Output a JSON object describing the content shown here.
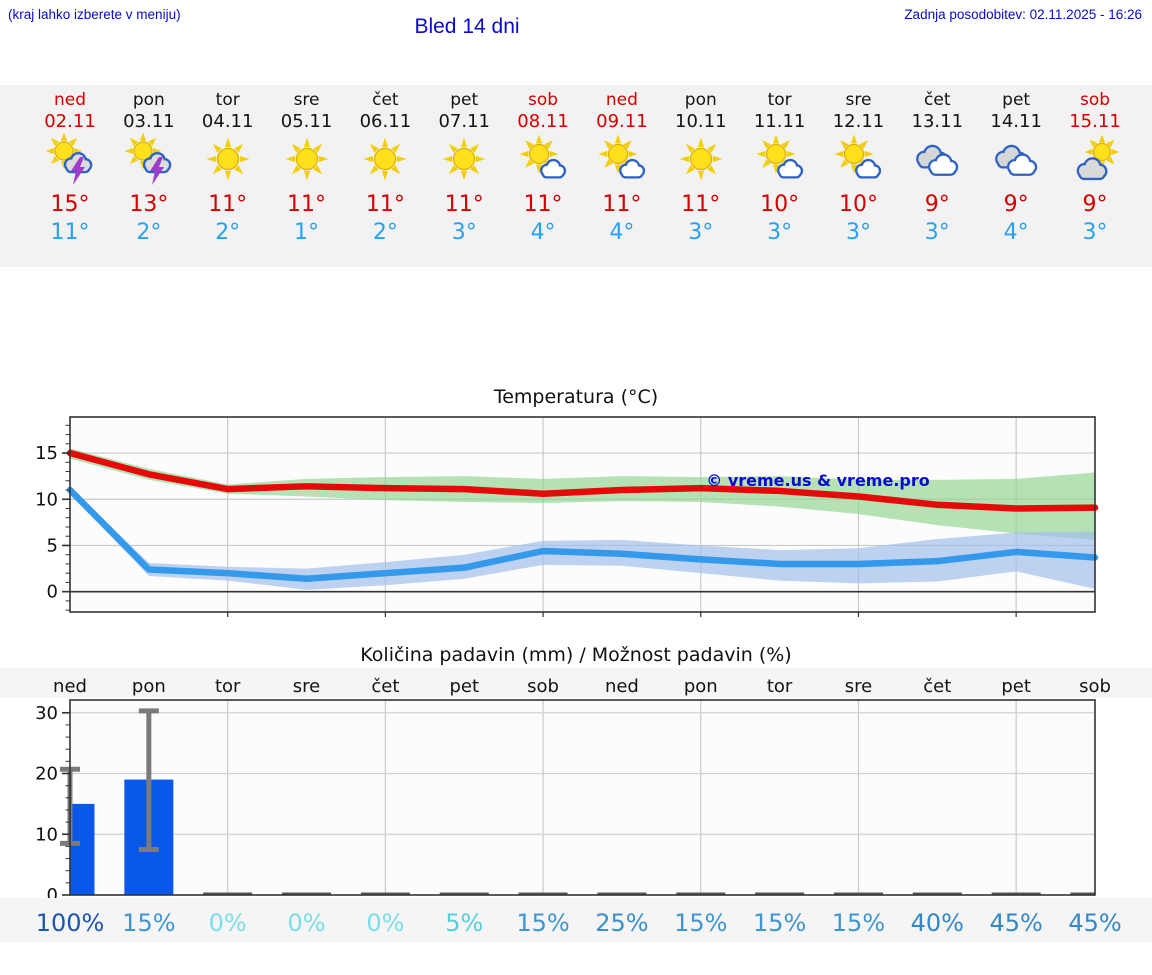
{
  "header": {
    "hint": "(kraj lahko izberete v meniju)",
    "title": "Bled 14 dni",
    "updated": "Zadnja posodobitev: 02.11.2025 - 16:26"
  },
  "palette": {
    "link_blue": "#0A0ACD",
    "day_red": "#D40000",
    "high_temp_red": "#D40000",
    "low_temp_blue": "#29A0F2",
    "strip_background": "#F2F2F2",
    "row_background": "#F5F5F5"
  },
  "forecast": {
    "days": [
      {
        "name": "ned",
        "date": "02.11",
        "red": true,
        "icon": "sun-thunderstorm",
        "high": "15°",
        "low": "11°"
      },
      {
        "name": "pon",
        "date": "03.11",
        "red": false,
        "icon": "sun-thunderstorm",
        "high": "13°",
        "low": "2°"
      },
      {
        "name": "tor",
        "date": "04.11",
        "red": false,
        "icon": "sunny",
        "high": "11°",
        "low": "2°"
      },
      {
        "name": "sre",
        "date": "05.11",
        "red": false,
        "icon": "sunny",
        "high": "11°",
        "low": "1°"
      },
      {
        "name": "čet",
        "date": "06.11",
        "red": false,
        "icon": "sunny",
        "high": "11°",
        "low": "2°"
      },
      {
        "name": "pet",
        "date": "07.11",
        "red": false,
        "icon": "sunny",
        "high": "11°",
        "low": "3°"
      },
      {
        "name": "sob",
        "date": "08.11",
        "red": true,
        "icon": "partly-cloudy",
        "high": "11°",
        "low": "4°"
      },
      {
        "name": "ned",
        "date": "09.11",
        "red": true,
        "icon": "partly-cloudy",
        "high": "11°",
        "low": "4°"
      },
      {
        "name": "pon",
        "date": "10.11",
        "red": false,
        "icon": "sunny",
        "high": "11°",
        "low": "3°"
      },
      {
        "name": "tor",
        "date": "11.11",
        "red": false,
        "icon": "partly-cloudy",
        "high": "10°",
        "low": "3°"
      },
      {
        "name": "sre",
        "date": "12.11",
        "red": false,
        "icon": "partly-cloudy",
        "high": "10°",
        "low": "3°"
      },
      {
        "name": "čet",
        "date": "13.11",
        "red": false,
        "icon": "cloudy",
        "high": "9°",
        "low": "3°"
      },
      {
        "name": "pet",
        "date": "14.11",
        "red": false,
        "icon": "cloudy",
        "high": "9°",
        "low": "4°"
      },
      {
        "name": "sob",
        "date": "15.11",
        "red": true,
        "icon": "mostly-cloudy",
        "high": "9°",
        "low": "3°"
      }
    ]
  },
  "chart_data": [
    {
      "type": "line",
      "title": "Temperatura (°C)",
      "x_labels": [
        "ned 02.11",
        "pon 03.11",
        "tor 04.11",
        "sre 05.11",
        "čet 06.11",
        "pet 07.11",
        "sob 08.11",
        "ned 09.11",
        "pon 10.11",
        "tor 11.11",
        "sre 12.11",
        "čet 13.11",
        "pet 14.11",
        "sob 15.11"
      ],
      "ylim": [
        -2.2,
        18.9
      ],
      "yticks": [
        0,
        5,
        10,
        15
      ],
      "grid_x_day_indices": [
        2,
        4,
        6,
        8,
        10,
        12
      ],
      "series": [
        {
          "name": "max-temperature",
          "color": "#E40A0A",
          "values": [
            15.0,
            12.7,
            11.1,
            11.4,
            11.2,
            11.1,
            10.6,
            11.0,
            11.2,
            10.9,
            10.3,
            9.4,
            9.0,
            9.1
          ]
        },
        {
          "name": "min-temperature",
          "color": "#3498EB",
          "values": [
            11.0,
            2.4,
            2.0,
            1.4,
            2.0,
            2.6,
            4.4,
            4.1,
            3.5,
            3.0,
            3.0,
            3.3,
            4.3,
            3.7
          ]
        }
      ],
      "bands": [
        {
          "name": "max-temperature-range",
          "color": "#93D693",
          "upper": [
            15.5,
            13.3,
            11.6,
            12.2,
            12.4,
            12.5,
            12.2,
            12.5,
            12.4,
            12.5,
            12.1,
            12.1,
            12.2,
            12.9
          ],
          "lower": [
            14.4,
            12.1,
            10.6,
            10.3,
            9.9,
            9.7,
            9.6,
            9.8,
            9.7,
            9.2,
            8.4,
            7.2,
            6.3,
            5.6
          ]
        },
        {
          "name": "min-temperature-range",
          "color": "#9FBCEC",
          "upper": [
            11.4,
            3.1,
            2.7,
            2.5,
            3.2,
            4.0,
            5.5,
            5.6,
            5.0,
            4.5,
            4.7,
            5.7,
            6.4,
            6.5
          ],
          "lower": [
            10.6,
            1.7,
            1.2,
            0.2,
            0.7,
            1.4,
            2.9,
            2.8,
            2.0,
            1.2,
            0.9,
            1.1,
            2.2,
            0.3
          ]
        }
      ],
      "watermark": "© vreme.us & vreme.pro"
    },
    {
      "type": "bar",
      "title": "Količina padavin (mm) / Možnost padavin (%)",
      "categories": [
        "ned",
        "pon",
        "tor",
        "sre",
        "čet",
        "pet",
        "sob",
        "ned",
        "pon",
        "tor",
        "sre",
        "čet",
        "pet",
        "sob"
      ],
      "values": [
        15,
        19,
        0,
        0,
        0,
        0,
        0,
        0,
        0,
        0,
        0,
        0,
        0,
        0
      ],
      "error_bars": {
        "low": [
          8.5,
          7.5,
          null,
          null,
          null,
          null,
          null,
          null,
          null,
          null,
          null,
          null,
          null,
          null
        ],
        "high": [
          20.7,
          30.3,
          null,
          null,
          null,
          null,
          null,
          null,
          null,
          null,
          null,
          null,
          null,
          null
        ]
      },
      "bar_color": "#0A58EA",
      "ylim": [
        0,
        32.1
      ],
      "yticks": [
        0,
        10,
        20,
        30
      ],
      "probabilities": [
        {
          "label": "100%",
          "color": "#1C55B0"
        },
        {
          "label": "15%",
          "color": "#3E96D2"
        },
        {
          "label": "0%",
          "color": "#7ADEE7"
        },
        {
          "label": "0%",
          "color": "#7ADEE7"
        },
        {
          "label": "0%",
          "color": "#7ADEE7"
        },
        {
          "label": "5%",
          "color": "#55CFDD"
        },
        {
          "label": "15%",
          "color": "#3E96D2"
        },
        {
          "label": "25%",
          "color": "#3B90CC"
        },
        {
          "label": "15%",
          "color": "#3E96D2"
        },
        {
          "label": "15%",
          "color": "#3E96D2"
        },
        {
          "label": "15%",
          "color": "#3E96D2"
        },
        {
          "label": "40%",
          "color": "#3488C6"
        },
        {
          "label": "45%",
          "color": "#3488C6"
        },
        {
          "label": "45%",
          "color": "#3488C6"
        }
      ]
    }
  ]
}
